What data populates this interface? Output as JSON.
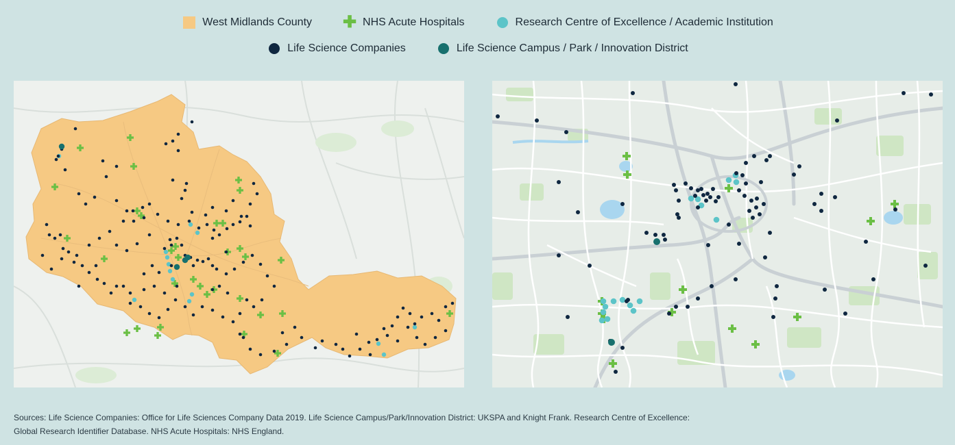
{
  "legend": {
    "items": [
      {
        "label": "West Midlands County",
        "symbol": "square-icon",
        "color": "#f6c983"
      },
      {
        "label": "NHS Acute Hospitals",
        "symbol": "plus-icon",
        "color": "#6bbf45"
      },
      {
        "label": "Research Centre of Excellence / Academic Institution",
        "symbol": "circle-icon",
        "color": "#5cc4c8"
      },
      {
        "label": "Life Science Companies",
        "symbol": "circle-icon",
        "color": "#0f2740"
      },
      {
        "label": "Life Science Campus / Park / Innovation District",
        "symbol": "circle-icon",
        "color": "#17706e"
      }
    ]
  },
  "sources": {
    "line1": "Sources: Life Science Companies: Office for Life Sciences Company Data 2019. Life Science Campus/Park/Innovation District: UKSPA and Knight Frank. Research Centre of Excellence:",
    "line2": "Global Research Identifier Database. NHS Acute Hospitals: NHS England."
  },
  "colors": {
    "county": "#f6c983",
    "hospital": "#6bbf45",
    "research": "#5cc4c8",
    "company": "#0f2740",
    "campus": "#17706e",
    "map_bg": "#eef1ee",
    "road": "#ffffff",
    "green_area": "#cfe6c4",
    "water": "#a9d6ef"
  }
}
